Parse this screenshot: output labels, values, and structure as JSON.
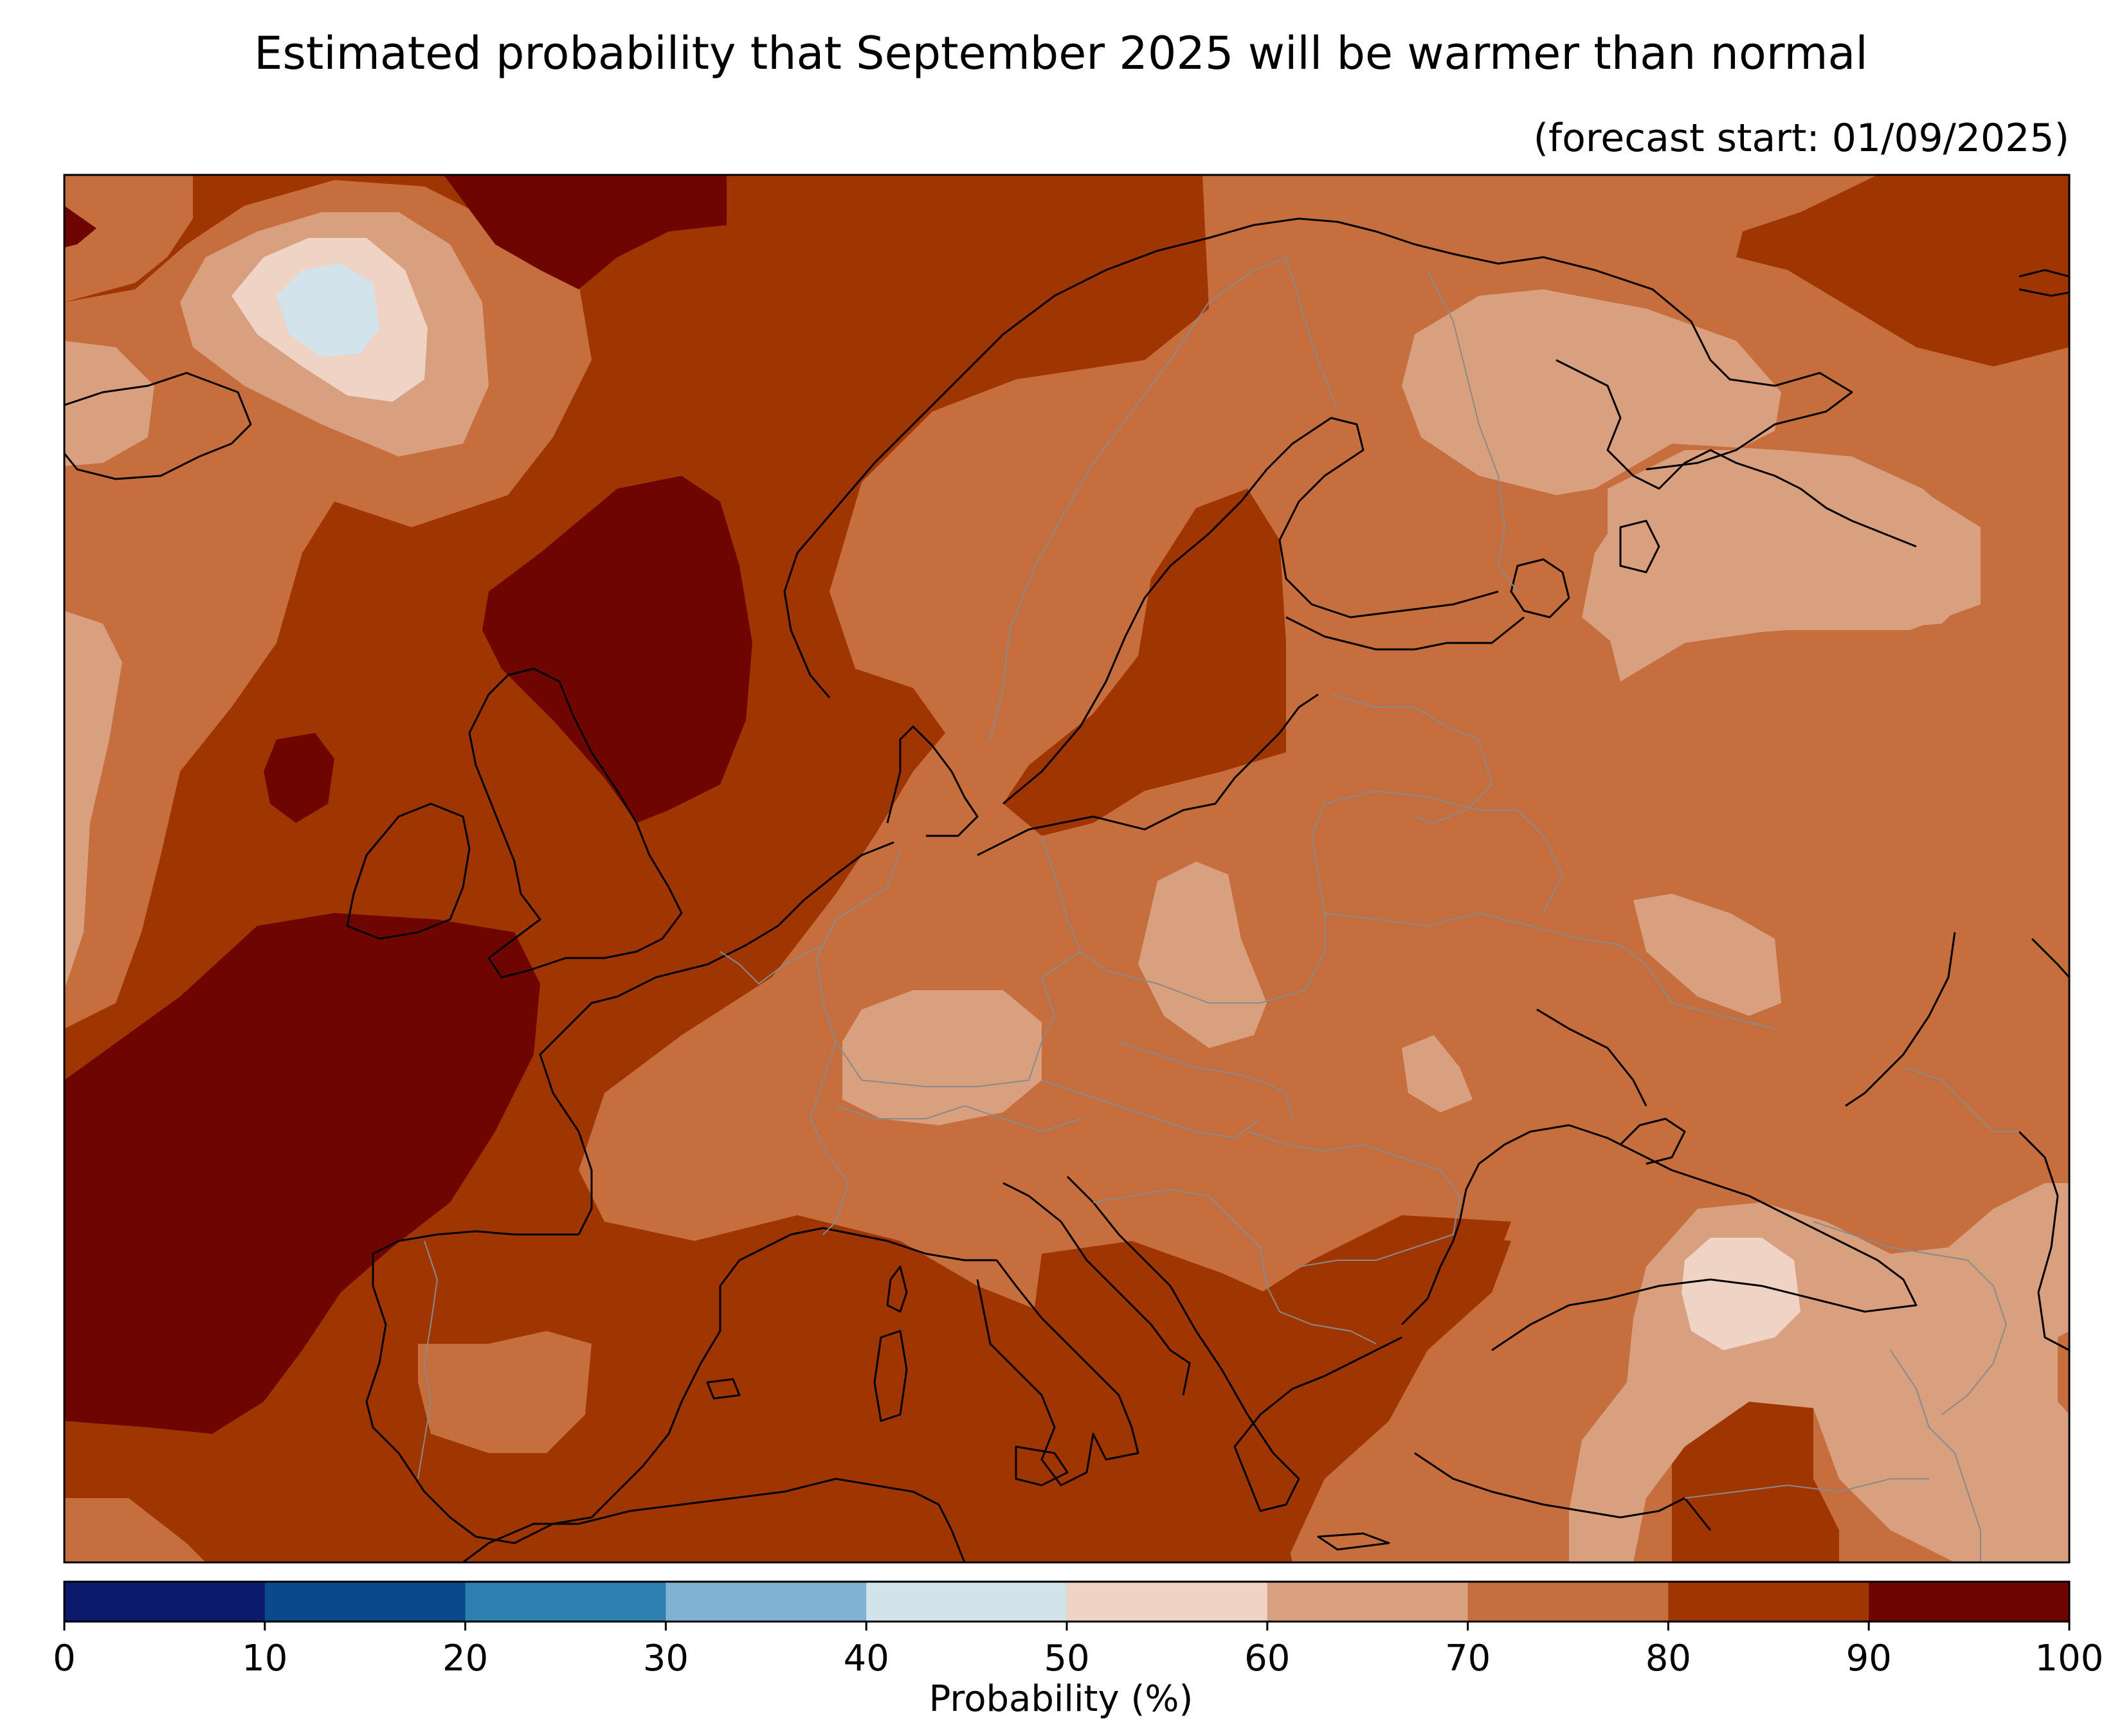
{
  "title": "Estimated probability that September 2025 will be warmer than normal",
  "subtitle": "(forecast start: 01/09/2025)",
  "colorbar": {
    "label": "Probability (%)",
    "ticks": [
      "0",
      "10",
      "20",
      "30",
      "40",
      "50",
      "60",
      "70",
      "80",
      "90",
      "100"
    ],
    "colors": [
      "#0b1a6b",
      "#0a4a8a",
      "#2c7fb0",
      "#80b3d3",
      "#d2e3ec",
      "#efd4c5",
      "#d9a080",
      "#c66e3e",
      "#9f3500",
      "#6e0500"
    ]
  },
  "map": {
    "region": "Europe",
    "variable": "probability of above-normal temperature",
    "colors": {
      "band_70_80": "#c66e3e",
      "band_80_90": "#9f3500",
      "band_90_100": "#6e0500",
      "band_60_70": "#d9a080",
      "band_50_60": "#efd4c5",
      "band_40_50": "#d2e3ec",
      "coastline": "#000000",
      "borders": "#8a8a8a"
    }
  }
}
